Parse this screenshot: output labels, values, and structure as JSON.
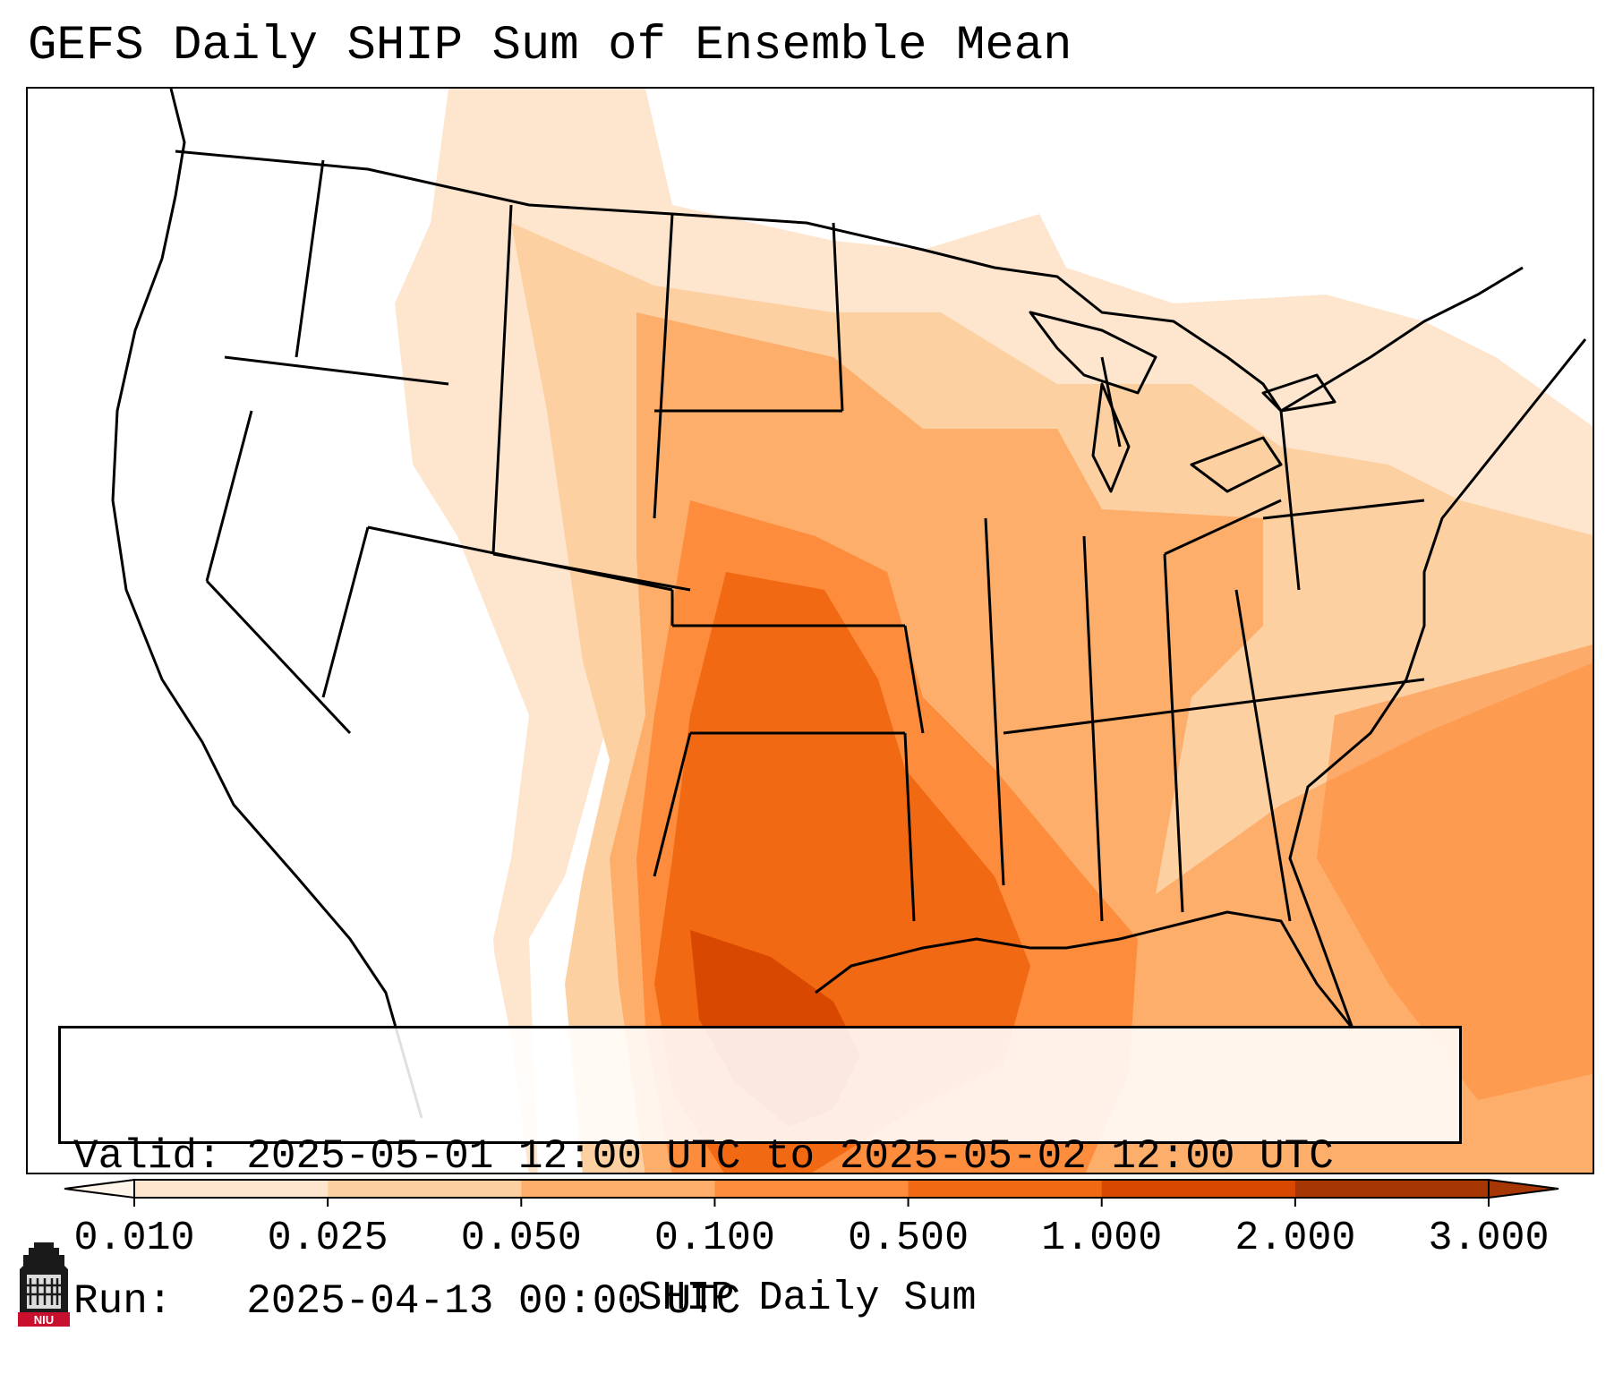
{
  "title": "GEFS Daily SHIP Sum of Ensemble Mean",
  "info": {
    "valid_label": "Valid:",
    "valid_value": "2025-05-01 12:00 UTC to 2025-05-02 12:00 UTC",
    "run_label": "Run:",
    "run_value": "2025-04-13 00:00 UTC"
  },
  "colorbar": {
    "label": "SHIP Daily Sum",
    "ticks": [
      "0.010",
      "0.025",
      "0.050",
      "0.100",
      "0.500",
      "1.000",
      "2.000",
      "3.000"
    ],
    "colors": [
      "#fff5eb",
      "#fee6ce",
      "#fdd0a2",
      "#fdae6b",
      "#fd8d3c",
      "#f16913",
      "#d94801",
      "#a63603"
    ]
  },
  "logo": {
    "text": "NIU",
    "icon": "university-tower-logo"
  }
}
